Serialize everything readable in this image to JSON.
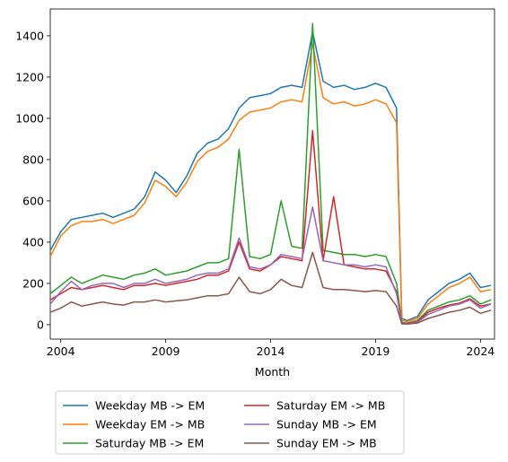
{
  "chart_data": {
    "type": "line",
    "title": "",
    "xlabel": "Month",
    "ylabel": "",
    "xlim": [
      2003.5,
      2024.67
    ],
    "ylim": [
      -70,
      1530
    ],
    "x_ticks": [
      2004,
      2009,
      2014,
      2019,
      2024
    ],
    "x_tick_labels": [
      "2004",
      "2009",
      "2014",
      "2019",
      "2024"
    ],
    "y_ticks": [
      0,
      200,
      400,
      600,
      800,
      1000,
      1200,
      1400
    ],
    "y_tick_labels": [
      "0",
      "200",
      "400",
      "600",
      "800",
      "1000",
      "1200",
      "1400"
    ],
    "grid": false,
    "legend": {
      "position": "below-plot",
      "columns": 2
    },
    "x": [
      2003.5,
      2004.0,
      2004.5,
      2005.0,
      2005.5,
      2006.0,
      2006.5,
      2007.0,
      2007.5,
      2008.0,
      2008.5,
      2009.0,
      2009.5,
      2010.0,
      2010.5,
      2011.0,
      2011.5,
      2012.0,
      2012.5,
      2013.0,
      2013.5,
      2014.0,
      2014.5,
      2015.0,
      2015.5,
      2016.0,
      2016.5,
      2017.0,
      2017.5,
      2018.0,
      2018.5,
      2019.0,
      2019.5,
      2020.0,
      2020.25,
      2020.5,
      2021.0,
      2021.5,
      2022.0,
      2022.5,
      2023.0,
      2023.5,
      2024.0,
      2024.5
    ],
    "series": [
      {
        "name": "Weekday MB -> EM",
        "color": "#1f77b4",
        "values": [
          360,
          450,
          510,
          520,
          530,
          540,
          520,
          540,
          560,
          620,
          740,
          700,
          640,
          720,
          830,
          880,
          900,
          950,
          1050,
          1100,
          1110,
          1120,
          1150,
          1160,
          1150,
          1420,
          1180,
          1150,
          1160,
          1140,
          1150,
          1170,
          1150,
          1050,
          30,
          20,
          40,
          120,
          160,
          200,
          220,
          250,
          180,
          190
        ]
      },
      {
        "name": "Weekday EM -> MB",
        "color": "#ff7f0e",
        "values": [
          330,
          430,
          480,
          500,
          500,
          510,
          490,
          510,
          530,
          590,
          700,
          670,
          620,
          690,
          790,
          840,
          860,
          900,
          990,
          1030,
          1040,
          1050,
          1080,
          1090,
          1080,
          1360,
          1100,
          1070,
          1080,
          1060,
          1070,
          1090,
          1070,
          980,
          20,
          15,
          30,
          100,
          140,
          180,
          200,
          230,
          160,
          170
        ]
      },
      {
        "name": "Saturday MB -> EM",
        "color": "#2ca02c",
        "values": [
          150,
          190,
          230,
          200,
          220,
          240,
          230,
          220,
          240,
          250,
          270,
          240,
          250,
          260,
          280,
          300,
          300,
          320,
          850,
          330,
          320,
          340,
          600,
          380,
          370,
          1460,
          360,
          350,
          340,
          340,
          330,
          340,
          330,
          200,
          10,
          8,
          20,
          70,
          90,
          110,
          120,
          140,
          100,
          120
        ]
      },
      {
        "name": "Saturday EM -> MB",
        "color": "#d62728",
        "values": [
          120,
          150,
          180,
          170,
          180,
          190,
          180,
          170,
          190,
          190,
          200,
          190,
          200,
          210,
          220,
          240,
          240,
          260,
          400,
          270,
          260,
          290,
          330,
          320,
          310,
          940,
          310,
          620,
          290,
          280,
          270,
          270,
          260,
          160,
          8,
          6,
          15,
          60,
          80,
          95,
          105,
          125,
          90,
          100
        ]
      },
      {
        "name": "Sunday MB -> EM",
        "color": "#9467bd",
        "values": [
          100,
          160,
          210,
          170,
          190,
          200,
          200,
          180,
          200,
          200,
          220,
          200,
          210,
          220,
          240,
          250,
          250,
          270,
          420,
          280,
          270,
          290,
          340,
          330,
          320,
          570,
          310,
          300,
          290,
          290,
          280,
          290,
          280,
          150,
          6,
          5,
          12,
          50,
          70,
          90,
          100,
          120,
          80,
          100
        ]
      },
      {
        "name": "Sunday EM -> MB",
        "color": "#8c564b",
        "values": [
          60,
          80,
          110,
          90,
          100,
          110,
          100,
          95,
          110,
          110,
          120,
          110,
          115,
          120,
          130,
          140,
          140,
          150,
          230,
          160,
          150,
          170,
          220,
          190,
          180,
          350,
          180,
          170,
          170,
          165,
          160,
          165,
          160,
          90,
          4,
          3,
          8,
          30,
          45,
          60,
          70,
          85,
          55,
          70
        ]
      }
    ]
  }
}
